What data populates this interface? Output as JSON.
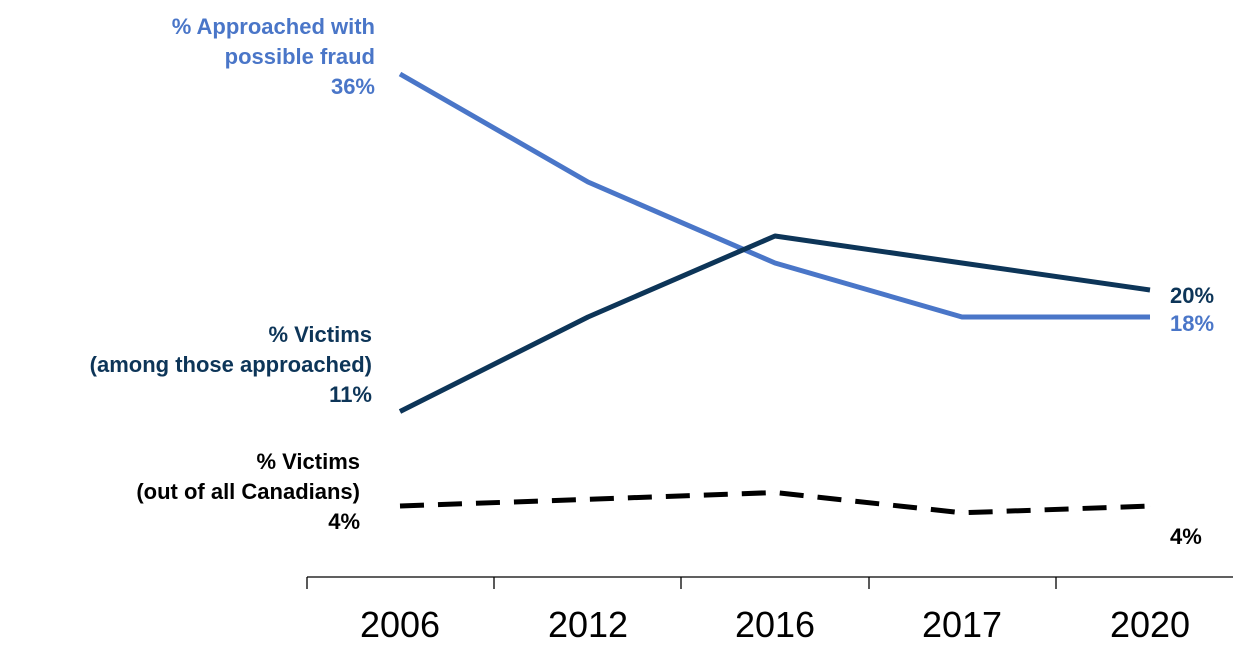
{
  "colors": {
    "approached": "#4a76c8",
    "victims_approached": "#0d3558",
    "victims_all": "#000000",
    "axis": "#000000"
  },
  "labels": {
    "approached_line1": "% Approached with",
    "approached_line2": "possible fraud",
    "approached_start": "36%",
    "approached_end": "18%",
    "victims_approached_line1": "% Victims",
    "victims_approached_line2": "(among those approached)",
    "victims_approached_start": "11%",
    "victims_approached_end": "20%",
    "victims_all_line1": "% Victims",
    "victims_all_line2": "(out of all Canadians)",
    "victims_all_start": "4%",
    "victims_all_end": "4%"
  },
  "chart_data": {
    "type": "line",
    "title": "",
    "xlabel": "",
    "ylabel": "",
    "categories": [
      "2006",
      "2012",
      "2016",
      "2017",
      "2020"
    ],
    "series": [
      {
        "name": "% Approached with possible fraud",
        "values": [
          36,
          28,
          22,
          18,
          18
        ],
        "style": "solid"
      },
      {
        "name": "% Victims (among those approached)",
        "values": [
          11,
          18,
          24,
          22,
          20
        ],
        "style": "solid"
      },
      {
        "name": "% Victims (out of all Canadians)",
        "values": [
          4,
          4.5,
          5,
          3.5,
          4
        ],
        "style": "dashed"
      }
    ],
    "ylim": [
      0,
      40
    ],
    "grid": false,
    "legend": "none"
  }
}
